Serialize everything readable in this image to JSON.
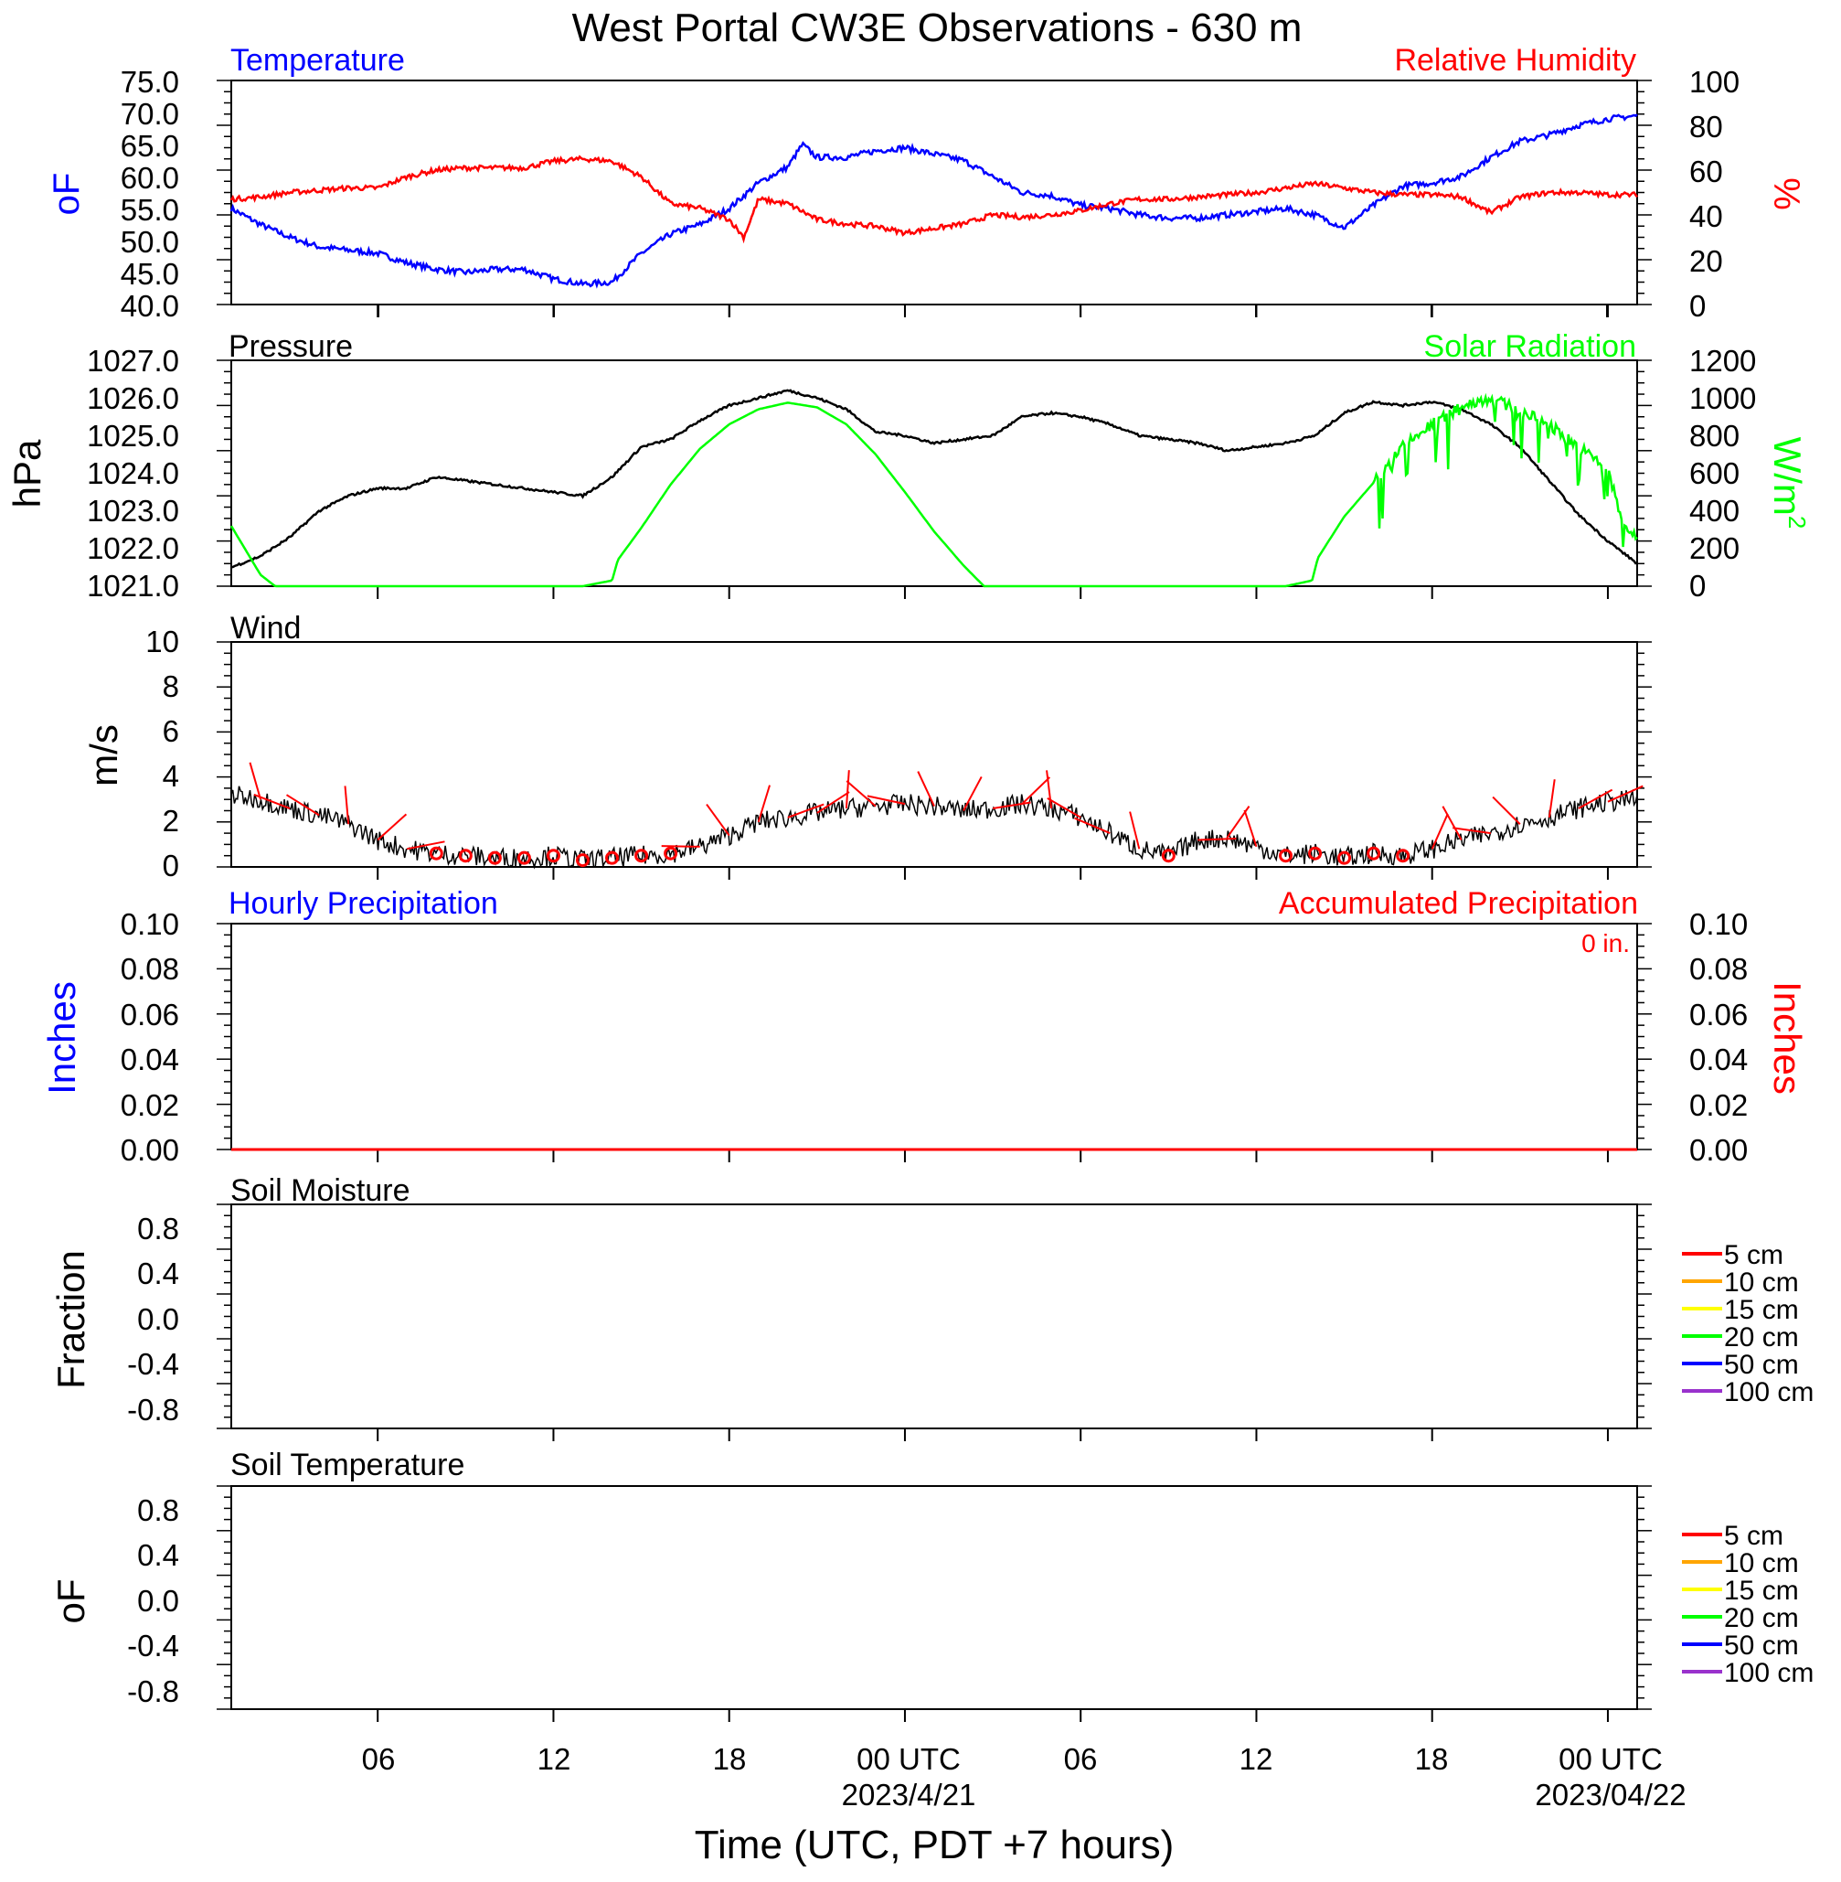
{
  "title": "West Portal CW3E Observations - 630 m",
  "xlabel": "Time (UTC, PDT +7 hours)",
  "x_ticks": [
    "06",
    "12",
    "18",
    "00 UTC",
    "06",
    "12",
    "18",
    "00 UTC"
  ],
  "x_dates": [
    "2023/4/21",
    "2023/04/22"
  ],
  "colors": {
    "temperature": "#0000ff",
    "humidity": "#ff0000",
    "pressure": "#000000",
    "solar": "#00ff00",
    "wind": "#000000",
    "barbs": "#ff0000",
    "precip_hourly": "#0000ff",
    "precip_accum": "#ff0000",
    "soil": [
      "#ff0000",
      "#ffa500",
      "#ffff00",
      "#00ff00",
      "#0000ff",
      "#9932cc"
    ]
  },
  "panels": {
    "temp": {
      "left_title": "Temperature",
      "right_title": "Relative Humidity",
      "left_unit": "oF",
      "right_unit": "%",
      "left_ticks": [
        "75.0",
        "70.0",
        "65.0",
        "60.0",
        "55.0",
        "50.0",
        "45.0",
        "40.0"
      ],
      "right_ticks": [
        "100",
        "80",
        "60",
        "40",
        "20",
        "0"
      ]
    },
    "pressure": {
      "left_title": "Pressure",
      "right_title": "Solar Radiation",
      "left_unit": "hPa",
      "right_unit": "W/m",
      "right_unit_sup": "2",
      "left_ticks": [
        "1027.0",
        "1026.0",
        "1025.0",
        "1024.0",
        "1023.0",
        "1022.0",
        "1021.0"
      ],
      "right_ticks": [
        "1200",
        "1000",
        "800",
        "600",
        "400",
        "200",
        "0"
      ]
    },
    "wind": {
      "left_title": "Wind",
      "left_unit": "m/s",
      "left_ticks": [
        "10",
        "8",
        "6",
        "4",
        "2",
        "0"
      ]
    },
    "precip": {
      "left_title": "Hourly Precipitation",
      "right_title": "Accumulated Precipitation",
      "accum_label": "0 in.",
      "left_unit": "Inches",
      "right_unit": "Inches",
      "left_ticks": [
        "0.10",
        "0.08",
        "0.06",
        "0.04",
        "0.02",
        "0.00"
      ],
      "right_ticks": [
        "0.10",
        "0.08",
        "0.06",
        "0.04",
        "0.02",
        "0.00"
      ]
    },
    "soil_moisture": {
      "left_title": "Soil Moisture",
      "left_unit": "Fraction",
      "left_ticks": [
        "0.8",
        "0.4",
        "0.0",
        "-0.4",
        "-0.8"
      ],
      "legend": [
        "5 cm",
        "10 cm",
        "15 cm",
        "20 cm",
        "50 cm",
        "100 cm"
      ]
    },
    "soil_temp": {
      "left_title": "Soil Temperature",
      "left_unit": "oF",
      "left_ticks": [
        "0.8",
        "0.4",
        "0.0",
        "-0.4",
        "-0.8"
      ],
      "legend": [
        "5 cm",
        "10 cm",
        "15 cm",
        "20 cm",
        "50 cm",
        "100 cm"
      ]
    }
  },
  "chart_data": [
    {
      "type": "line",
      "panel": "temperature_humidity",
      "x_unit": "hours since 2023-04-20 00 UTC",
      "xlim": [
        1,
        49
      ],
      "series": [
        {
          "name": "Temperature",
          "axis": "left",
          "ylim": [
            40,
            75
          ],
          "x": [
            1,
            2,
            3,
            4,
            5,
            6,
            7,
            8,
            9,
            10,
            11,
            12,
            13,
            14,
            15,
            16,
            17,
            18,
            19,
            20,
            20.5,
            21,
            22,
            23,
            24,
            25,
            26,
            27,
            28,
            29,
            30,
            31,
            32,
            33,
            34,
            35,
            36,
            37,
            38,
            39,
            40,
            41,
            42,
            43,
            44,
            45,
            46,
            47,
            48,
            49
          ],
          "values": [
            55,
            52.5,
            50.5,
            49,
            48.5,
            48,
            46.5,
            45.5,
            45,
            45.5,
            45.5,
            44,
            43.2,
            43.5,
            48,
            51,
            52.5,
            55,
            59,
            61.5,
            65,
            63,
            63,
            64,
            64.5,
            63.5,
            62.5,
            60,
            57.5,
            57,
            55.5,
            55,
            54,
            53.5,
            53.5,
            54,
            54.5,
            55,
            54,
            52,
            55.5,
            58.5,
            59,
            60,
            63,
            65.5,
            66.5,
            68,
            69,
            69.5
          ]
        },
        {
          "name": "Relative Humidity",
          "axis": "right",
          "ylim": [
            0,
            100
          ],
          "x": [
            1,
            2,
            3,
            4,
            5,
            6,
            7,
            8,
            9,
            10,
            11,
            12,
            13,
            14,
            15,
            16,
            17,
            18,
            18.5,
            19,
            20,
            21,
            22,
            23,
            24,
            25,
            26,
            27,
            28,
            29,
            30,
            31,
            32,
            33,
            34,
            35,
            36,
            37,
            38,
            39,
            40,
            41,
            42,
            43,
            44,
            45,
            46,
            47,
            48,
            49
          ],
          "values": [
            47,
            48,
            50,
            51,
            52,
            52,
            57,
            60,
            61,
            61,
            61,
            64,
            65,
            64,
            57,
            45,
            43,
            38,
            30,
            47,
            45,
            38,
            36,
            35,
            32,
            34,
            36,
            40,
            39,
            40,
            42,
            45,
            47,
            47,
            48,
            49,
            50,
            52,
            54,
            52,
            50,
            49,
            49,
            48,
            41,
            48,
            50,
            50,
            49,
            49
          ]
        }
      ]
    },
    {
      "type": "line",
      "panel": "pressure_solar",
      "x_unit": "hours since 2023-04-20 00 UTC",
      "xlim": [
        1,
        49
      ],
      "series": [
        {
          "name": "Pressure",
          "axis": "left",
          "ylim": [
            1021,
            1027
          ],
          "x": [
            1,
            2,
            3,
            4,
            5,
            6,
            7,
            8,
            9,
            10,
            11,
            12,
            13,
            14,
            15,
            16,
            17,
            18,
            19,
            20,
            21,
            22,
            23,
            24,
            25,
            26,
            27,
            28,
            29,
            30,
            31,
            32,
            33,
            34,
            35,
            36,
            37,
            38,
            39,
            40,
            41,
            42,
            43,
            44,
            45,
            46,
            47,
            48,
            49
          ],
          "values": [
            1021.5,
            1021.8,
            1022.3,
            1023.0,
            1023.4,
            1023.6,
            1023.6,
            1023.9,
            1023.8,
            1023.7,
            1023.6,
            1023.5,
            1023.4,
            1023.9,
            1024.7,
            1024.9,
            1025.4,
            1025.8,
            1026.0,
            1026.2,
            1026.0,
            1025.7,
            1025.1,
            1025.0,
            1024.8,
            1024.9,
            1025.0,
            1025.5,
            1025.6,
            1025.5,
            1025.3,
            1025.0,
            1024.9,
            1024.8,
            1024.6,
            1024.7,
            1024.8,
            1025.0,
            1025.6,
            1025.9,
            1025.8,
            1025.9,
            1025.7,
            1025.3,
            1024.7,
            1023.8,
            1022.9,
            1022.2,
            1021.6
          ]
        },
        {
          "name": "Solar Radiation",
          "axis": "right",
          "ylim": [
            0,
            1200
          ],
          "x": [
            1,
            2,
            2.5,
            13,
            14,
            14.2,
            15,
            16,
            17,
            18,
            19,
            20,
            21,
            22,
            23,
            24,
            25,
            26,
            26.7,
            37,
            37.9,
            38.1,
            39,
            40,
            41,
            42,
            43,
            44,
            45,
            46,
            47,
            48,
            48.5,
            49
          ],
          "values": [
            320,
            60,
            0,
            0,
            30,
            140,
            310,
            540,
            730,
            860,
            940,
            975,
            950,
            860,
            700,
            500,
            290,
            110,
            0,
            0,
            30,
            150,
            370,
            550,
            740,
            860,
            960,
            1000,
            930,
            860,
            740,
            620,
            330,
            260
          ]
        }
      ]
    },
    {
      "type": "line",
      "panel": "wind",
      "x_unit": "hours since 2023-04-20 00 UTC",
      "xlim": [
        1,
        49
      ],
      "series": [
        {
          "name": "Wind",
          "ylim": [
            0,
            10
          ],
          "x": [
            1,
            2,
            3,
            4,
            5,
            6,
            7,
            8,
            9,
            10,
            11,
            12,
            13,
            14,
            15,
            16,
            17,
            18,
            19,
            20,
            21,
            22,
            23,
            24,
            25,
            26,
            27,
            28,
            29,
            30,
            31,
            32,
            33,
            34,
            35,
            36,
            37,
            38,
            39,
            40,
            41,
            42,
            43,
            44,
            45,
            46,
            47,
            48,
            49
          ],
          "values": [
            3.2,
            3.0,
            2.6,
            2.3,
            1.9,
            1.2,
            0.8,
            0.6,
            0.5,
            0.4,
            0.4,
            0.5,
            0.3,
            0.4,
            0.5,
            0.6,
            0.9,
            1.4,
            2.0,
            2.2,
            2.4,
            2.6,
            2.7,
            2.8,
            2.7,
            2.5,
            2.6,
            2.8,
            2.6,
            2.2,
            1.5,
            0.8,
            0.5,
            1.2,
            1.3,
            0.9,
            0.5,
            0.6,
            0.4,
            0.6,
            0.5,
            0.8,
            1.2,
            1.5,
            1.9,
            2.2,
            2.6,
            2.9,
            3.0
          ]
        }
      ]
    },
    {
      "type": "line",
      "panel": "precipitation",
      "x_unit": "hours since 2023-04-20 00 UTC",
      "xlim": [
        1,
        49
      ],
      "series": [
        {
          "name": "Hourly Precipitation",
          "axis": "left",
          "ylim": [
            0,
            0.1
          ],
          "x": [
            1,
            49
          ],
          "values": [
            0,
            0
          ]
        },
        {
          "name": "Accumulated Precipitation",
          "axis": "right",
          "ylim": [
            0,
            0.1
          ],
          "x": [
            1,
            49
          ],
          "values": [
            0,
            0
          ]
        }
      ]
    },
    {
      "type": "line",
      "panel": "soil_moisture",
      "xlim": [
        1,
        49
      ],
      "ylim": [
        -1,
        1
      ],
      "series": []
    },
    {
      "type": "line",
      "panel": "soil_temperature",
      "xlim": [
        1,
        49
      ],
      "ylim": [
        -1,
        1
      ],
      "series": []
    }
  ]
}
